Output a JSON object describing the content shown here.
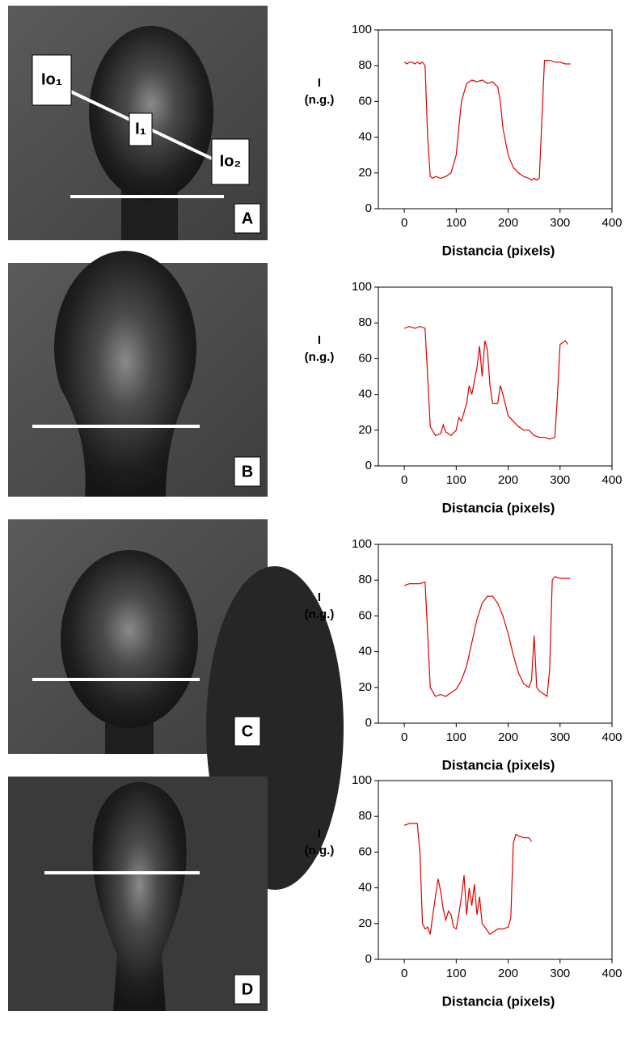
{
  "photos": [
    {
      "label": "A",
      "annotations": [
        "Io₁",
        "I₁",
        "Io₂"
      ]
    },
    {
      "label": "B"
    },
    {
      "label": "C"
    },
    {
      "label": "D"
    }
  ],
  "chart_data": [
    {
      "type": "line",
      "y_label": [
        "I",
        "(n.g.)"
      ],
      "x_label": "Distancia (pixels)",
      "color": "#e00000",
      "xlim": [
        -50,
        400
      ],
      "xticks": [
        0,
        100,
        200,
        300,
        400
      ],
      "ylim": [
        0,
        100
      ],
      "yticks": [
        0,
        20,
        40,
        60,
        80,
        100
      ],
      "x": [
        0,
        5,
        10,
        15,
        20,
        25,
        30,
        35,
        40,
        45,
        50,
        55,
        60,
        70,
        80,
        90,
        100,
        105,
        110,
        115,
        120,
        130,
        140,
        150,
        160,
        170,
        180,
        185,
        190,
        200,
        210,
        220,
        230,
        240,
        245,
        250,
        255,
        260,
        265,
        270,
        280,
        290,
        300,
        310,
        320
      ],
      "values": [
        82,
        81,
        82,
        82,
        81,
        82,
        81,
        82,
        80,
        40,
        18,
        17,
        18,
        17,
        18,
        20,
        30,
        45,
        60,
        65,
        70,
        72,
        71,
        72,
        70,
        71,
        68,
        60,
        45,
        30,
        23,
        20,
        18,
        17,
        16,
        17,
        16,
        17,
        50,
        83,
        83,
        82,
        82,
        81,
        81
      ]
    },
    {
      "type": "line",
      "y_label": [
        "I",
        "(n.g.)"
      ],
      "x_label": "Distancia (pixels)",
      "color": "#e00000",
      "xlim": [
        -50,
        400
      ],
      "xticks": [
        0,
        100,
        200,
        300,
        400
      ],
      "ylim": [
        0,
        100
      ],
      "yticks": [
        0,
        20,
        40,
        60,
        80,
        100
      ],
      "x": [
        0,
        10,
        20,
        30,
        40,
        45,
        50,
        60,
        70,
        75,
        80,
        90,
        100,
        105,
        110,
        120,
        125,
        130,
        140,
        145,
        150,
        155,
        160,
        165,
        170,
        180,
        185,
        190,
        200,
        210,
        220,
        230,
        240,
        250,
        260,
        270,
        280,
        290,
        295,
        300,
        310,
        315
      ],
      "values": [
        77,
        78,
        77,
        78,
        77,
        50,
        22,
        17,
        18,
        23,
        19,
        17,
        20,
        27,
        25,
        35,
        45,
        40,
        55,
        67,
        50,
        70,
        65,
        45,
        35,
        35,
        45,
        40,
        28,
        25,
        22,
        20,
        20,
        17,
        16,
        16,
        15,
        16,
        40,
        68,
        70,
        68
      ]
    },
    {
      "type": "line",
      "y_label": [
        "I",
        "(n.g.)"
      ],
      "x_label": "Distancia (pixels)",
      "color": "#e00000",
      "xlim": [
        -50,
        400
      ],
      "xticks": [
        0,
        100,
        200,
        300,
        400
      ],
      "ylim": [
        0,
        100
      ],
      "yticks": [
        0,
        20,
        40,
        60,
        80,
        100
      ],
      "x": [
        0,
        10,
        20,
        30,
        40,
        45,
        50,
        60,
        70,
        80,
        90,
        100,
        110,
        120,
        130,
        140,
        150,
        160,
        170,
        180,
        190,
        200,
        210,
        220,
        230,
        240,
        245,
        250,
        255,
        260,
        270,
        275,
        280,
        285,
        290,
        300,
        310,
        320
      ],
      "values": [
        77,
        78,
        78,
        78,
        79,
        50,
        20,
        15,
        16,
        15,
        17,
        19,
        24,
        32,
        45,
        58,
        67,
        71,
        71,
        67,
        60,
        50,
        38,
        28,
        22,
        20,
        24,
        49,
        20,
        18,
        16,
        15,
        30,
        80,
        82,
        81,
        81,
        81
      ]
    },
    {
      "type": "line",
      "y_label": [
        "I",
        "(n.g.)"
      ],
      "x_label": "Distancia (pixels)",
      "color": "#e00000",
      "xlim": [
        -50,
        400
      ],
      "xticks": [
        0,
        100,
        200,
        300,
        400
      ],
      "ylim": [
        0,
        100
      ],
      "yticks": [
        0,
        20,
        40,
        60,
        80,
        100
      ],
      "x": [
        0,
        10,
        20,
        25,
        30,
        35,
        40,
        45,
        50,
        55,
        60,
        65,
        70,
        75,
        80,
        85,
        90,
        95,
        100,
        105,
        110,
        115,
        120,
        125,
        130,
        135,
        140,
        145,
        150,
        155,
        160,
        165,
        170,
        180,
        190,
        200,
        205,
        210,
        215,
        220,
        230,
        240,
        245
      ],
      "values": [
        75,
        76,
        76,
        76,
        60,
        20,
        17,
        18,
        14,
        25,
        35,
        45,
        38,
        28,
        22,
        27,
        25,
        18,
        17,
        25,
        35,
        47,
        25,
        40,
        30,
        42,
        25,
        35,
        20,
        18,
        16,
        14,
        15,
        17,
        17,
        18,
        23,
        65,
        70,
        69,
        68,
        68,
        66
      ]
    }
  ]
}
